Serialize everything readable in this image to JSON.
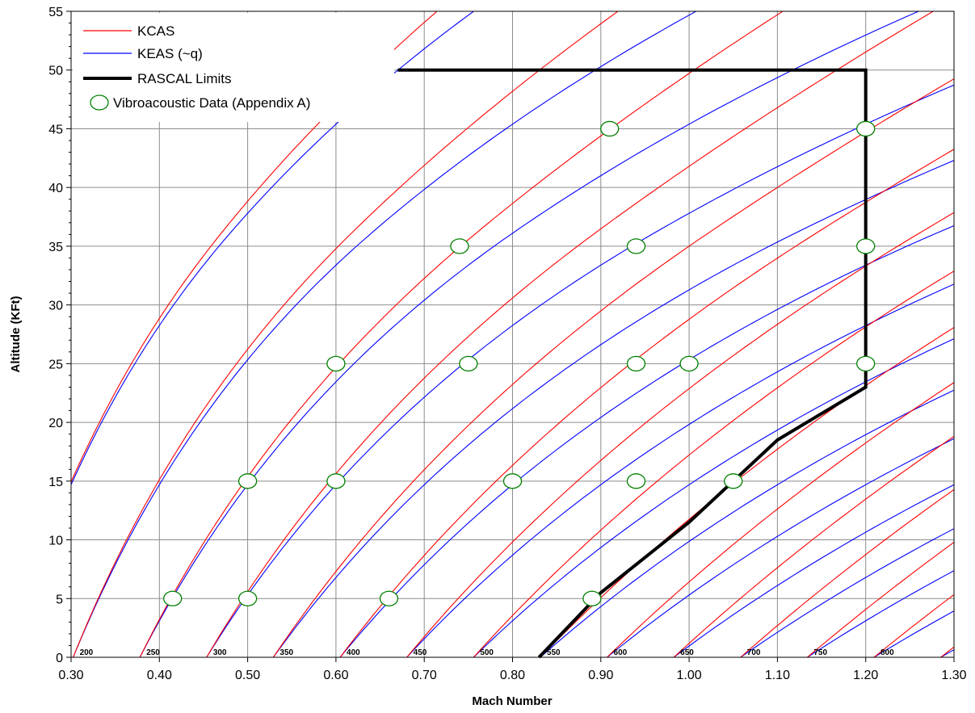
{
  "chart_data": {
    "type": "line",
    "xlabel": "Mach Number",
    "ylabel": "Altitude (KFt)",
    "xlim": [
      0.3,
      1.3
    ],
    "ylim": [
      0,
      55
    ],
    "x_ticks": [
      "0.30",
      "0.40",
      "0.50",
      "0.60",
      "0.70",
      "0.80",
      "0.90",
      "1.00",
      "1.10",
      "1.20",
      "1.30"
    ],
    "y_ticks": [
      "0",
      "5",
      "10",
      "15",
      "20",
      "25",
      "30",
      "35",
      "40",
      "45",
      "50",
      "55"
    ],
    "grid": true,
    "legend_position": "top-left",
    "colors": {
      "kcas": "#ff0000",
      "keas": "#0000ff",
      "limits": "#000000",
      "data": "#008000"
    },
    "speed_values": [
      200,
      250,
      300,
      350,
      400,
      450,
      500,
      550,
      600,
      650,
      700,
      750,
      800
    ],
    "speed_labels": [
      "200",
      "250",
      "300",
      "350",
      "400",
      "450",
      "500",
      "550",
      "600",
      "650",
      "700",
      "750",
      "800"
    ],
    "series": [
      {
        "name": "KCAS",
        "kind": "line"
      },
      {
        "name": "KEAS (~q)",
        "kind": "line"
      },
      {
        "name": "RASCAL Limits",
        "kind": "line",
        "points": [
          [
            0.83,
            0
          ],
          [
            0.9,
            5.5
          ],
          [
            0.95,
            8.5
          ],
          [
            1.0,
            11.5
          ],
          [
            1.05,
            15.0
          ],
          [
            1.1,
            18.5
          ],
          [
            1.2,
            23.0
          ],
          [
            1.2,
            50
          ],
          [
            0.67,
            50
          ]
        ]
      },
      {
        "name": "Vibroacoustic Data (Appendix A)",
        "kind": "scatter",
        "points": [
          [
            0.415,
            5
          ],
          [
            0.5,
            5
          ],
          [
            0.66,
            5
          ],
          [
            0.89,
            5
          ],
          [
            0.5,
            15
          ],
          [
            0.6,
            15
          ],
          [
            0.8,
            15
          ],
          [
            0.94,
            15
          ],
          [
            1.05,
            15
          ],
          [
            0.6,
            25
          ],
          [
            0.75,
            25
          ],
          [
            0.94,
            25
          ],
          [
            1.0,
            25
          ],
          [
            1.2,
            25
          ],
          [
            0.74,
            35
          ],
          [
            0.94,
            35
          ],
          [
            1.2,
            35
          ],
          [
            0.91,
            45
          ],
          [
            1.2,
            45
          ]
        ]
      }
    ]
  }
}
